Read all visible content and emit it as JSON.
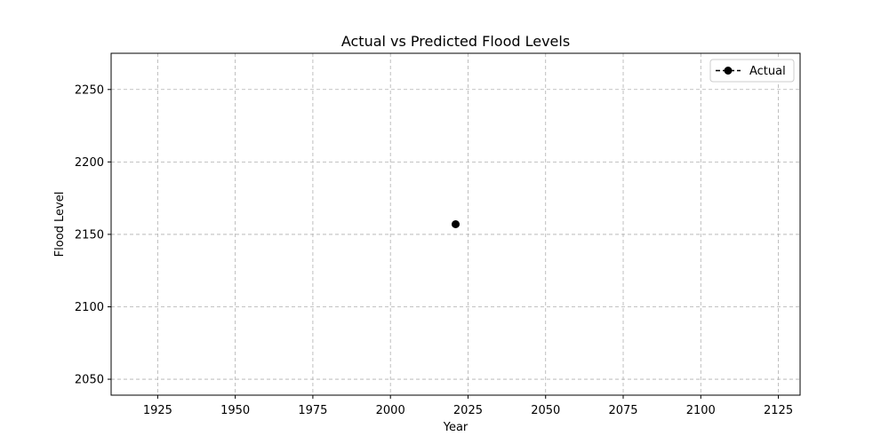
{
  "chart_data": {
    "type": "line",
    "title": "Actual vs Predicted Flood Levels",
    "xlabel": "Year",
    "ylabel": "Flood Level",
    "xlim": [
      1910,
      2132
    ],
    "ylim": [
      2039,
      2275
    ],
    "xticks": [
      1925,
      1950,
      1975,
      2000,
      2025,
      2050,
      2075,
      2100,
      2125
    ],
    "yticks": [
      2050,
      2100,
      2150,
      2200,
      2250
    ],
    "grid": true,
    "legend_position": "top-right",
    "series": [
      {
        "name": "Actual",
        "color": "#000000",
        "line_style": "dashed",
        "marker": "circle",
        "x": [
          2021
        ],
        "y": [
          2157
        ]
      }
    ]
  }
}
